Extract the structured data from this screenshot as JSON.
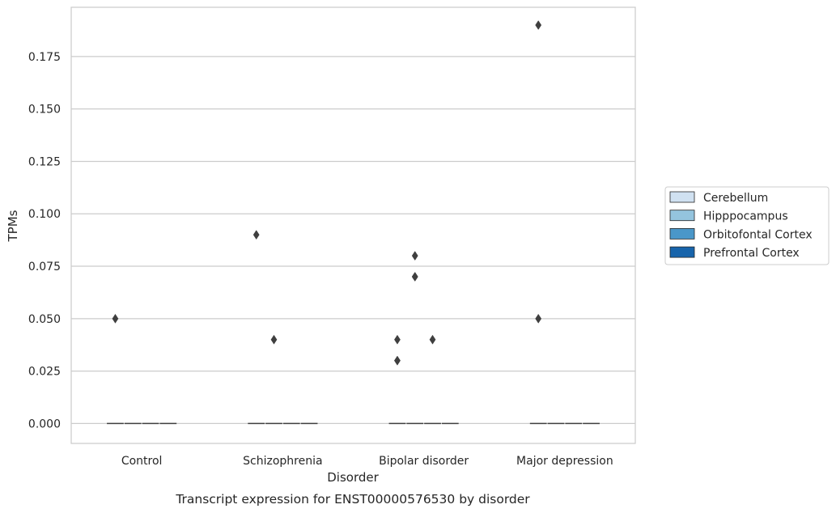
{
  "chart_data": {
    "type": "box",
    "categories": [
      "Control",
      "Schizophrenia",
      "Bipolar disorder",
      "Major depression"
    ],
    "xlabel": "Disorder",
    "ylabel": "TPMs",
    "caption": "Transcript expression for ENST00000576530 by disorder",
    "ylim": [
      -0.0095,
      0.1985
    ],
    "yticks": [
      0.0,
      0.025,
      0.05,
      0.075,
      0.1,
      0.125,
      0.15,
      0.175
    ],
    "ytick_labels": [
      "0.000",
      "0.025",
      "0.050",
      "0.075",
      "0.100",
      "0.125",
      "0.150",
      "0.175"
    ],
    "grid": "horizontal",
    "legend_placement": "right-center",
    "series": [
      {
        "name": "Cerebellum",
        "color": "#d0e1f1",
        "outliers": [
          [
            0.05
          ],
          [
            0.09
          ],
          [
            0.04,
            0.03,
            0.03
          ],
          [
            0.19,
            0.05
          ]
        ]
      },
      {
        "name": "Hipppocampus",
        "color": "#94c4de",
        "outliers": [
          [],
          [
            0.04
          ],
          [
            0.08,
            0.07,
            0.07
          ],
          []
        ]
      },
      {
        "name": "Orbitofontal Cortex",
        "color": "#4a97c9",
        "outliers": [
          [],
          [],
          [
            0.04
          ],
          []
        ]
      },
      {
        "name": "Prefrontal Cortex",
        "color": "#1764ab",
        "outliers": [
          [],
          [],
          [],
          []
        ]
      }
    ],
    "median_value": 0.0
  }
}
